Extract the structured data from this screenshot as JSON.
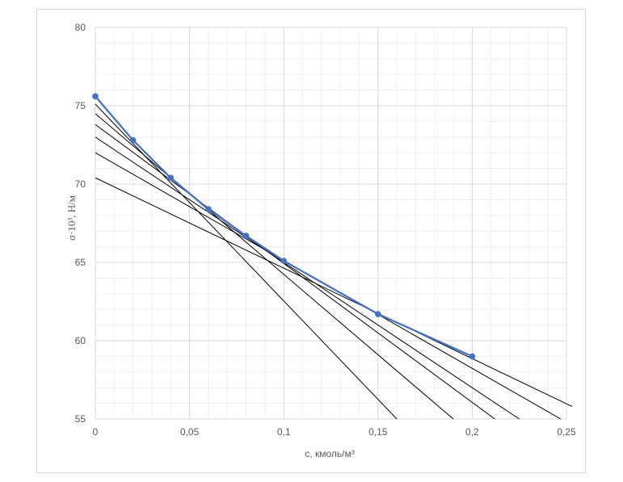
{
  "chart_data": {
    "type": "line",
    "xlabel": "с, кмоль/м³",
    "ylabel": "σ·10³, Н/м",
    "xlim": [
      0,
      0.25
    ],
    "ylim": [
      55,
      80
    ],
    "x_ticks": [
      "0",
      "0,05",
      "0,1",
      "0,15",
      "0,2",
      "0,25"
    ],
    "y_ticks": [
      "55",
      "60",
      "65",
      "70",
      "75",
      "80"
    ],
    "grid": {
      "major": true,
      "minor": true
    },
    "series": [
      {
        "color": "#4472c4",
        "x": [
          0,
          0.02,
          0.04,
          0.06,
          0.08,
          0.1,
          0.15,
          0.2
        ],
        "y": [
          75.6,
          72.8,
          70.4,
          68.4,
          66.7,
          65.1,
          61.7,
          59.0
        ]
      }
    ],
    "tangent_lines": {
      "color": "#000000",
      "lines": [
        {
          "x": [
            0,
            0.16
          ],
          "y": [
            75.1,
            55.0
          ]
        },
        {
          "x": [
            0,
            0.19
          ],
          "y": [
            74.5,
            55.0
          ]
        },
        {
          "x": [
            0,
            0.212
          ],
          "y": [
            73.8,
            55.0
          ]
        },
        {
          "x": [
            0,
            0.225
          ],
          "y": [
            73.0,
            55.0
          ]
        },
        {
          "x": [
            0,
            0.247
          ],
          "y": [
            72.0,
            55.0
          ]
        },
        {
          "x": [
            0,
            0.253
          ],
          "y": [
            70.4,
            55.8
          ]
        }
      ]
    }
  }
}
